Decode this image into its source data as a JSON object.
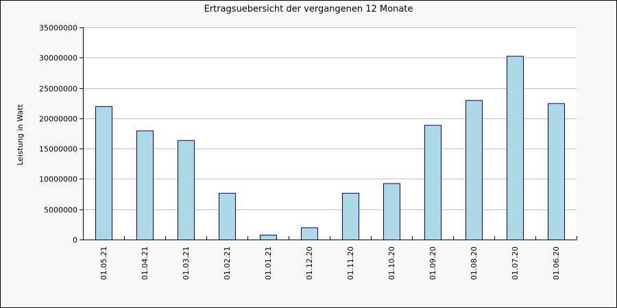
{
  "chart_data": {
    "type": "bar",
    "title": "Ertragsuebersicht der vergangenen 12 Monate",
    "xlabel": "",
    "ylabel": "Leistung in Watt",
    "categories": [
      "01.05.21",
      "01.04.21",
      "01.03.21",
      "01.02.21",
      "01.01.21",
      "01.12.20",
      "01.11.20",
      "01.10.20",
      "01.09.20",
      "01.08.20",
      "01.07.20",
      "01.06.20"
    ],
    "values": [
      22000000,
      18000000,
      16400000,
      7700000,
      800000,
      2000000,
      7700000,
      9300000,
      18900000,
      23000000,
      30300000,
      22500000
    ],
    "yticks": [
      "0",
      "5000000",
      "10000000",
      "15000000",
      "20000000",
      "25000000",
      "30000000",
      "35000000"
    ],
    "ylim": [
      0,
      35000000
    ],
    "grid": true,
    "legend": "none",
    "colors": {
      "bar_fill": "#add8e6",
      "bar_stroke": "#00008b",
      "grid": "#c0c0c0",
      "plot_bg": "#ffffff",
      "frame_bg": "#f8f8f8"
    }
  }
}
